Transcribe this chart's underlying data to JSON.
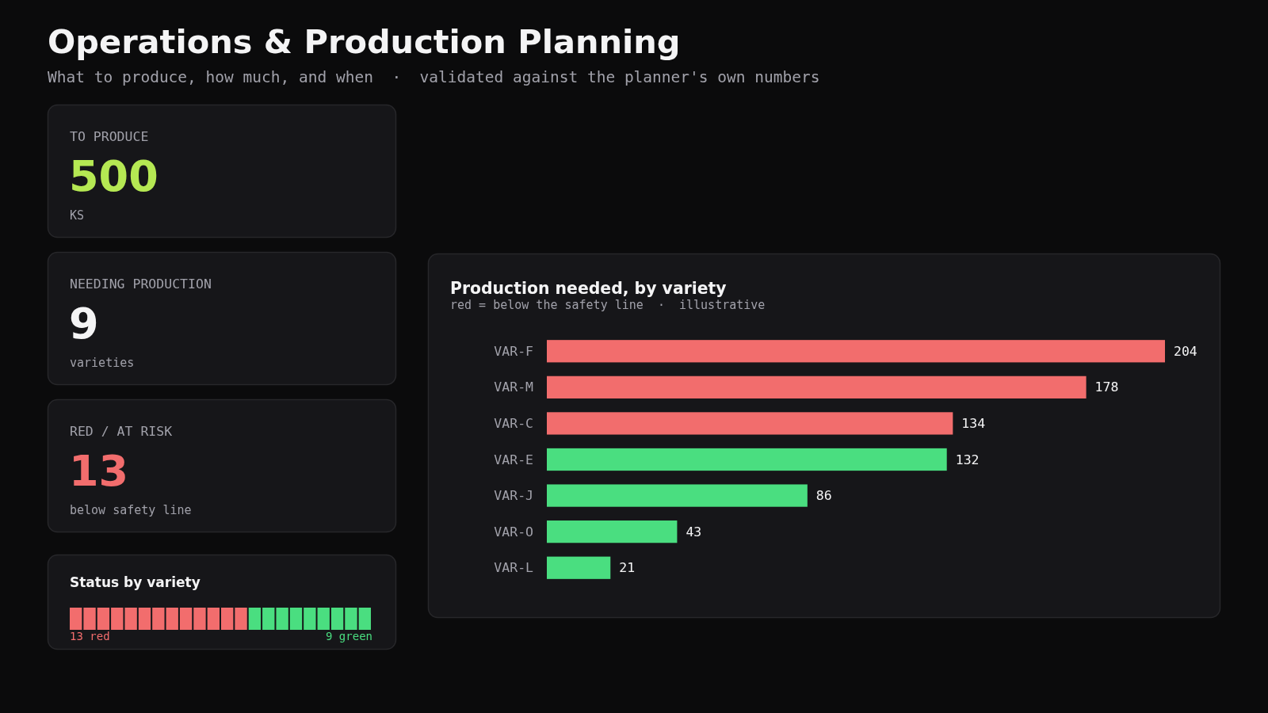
{
  "chart_data": [
    {
      "type": "other",
      "title": "Operations & Production Planning",
      "subtitle": "What to produce, how much, and when  ·  validated against the planner's own numbers"
    },
    {
      "type": "other",
      "title": "TO PRODUCE",
      "values": [
        500
      ],
      "data_labels": true,
      "annotations": [
        "KS"
      ]
    },
    {
      "type": "other",
      "title": "NEEDING PRODUCTION",
      "values": [
        9
      ],
      "data_labels": true,
      "annotations": [
        "varieties"
      ]
    },
    {
      "type": "other",
      "title": "RED / AT RISK",
      "values": [
        13
      ],
      "data_labels": true,
      "annotations": [
        "below safety line"
      ]
    },
    {
      "type": "other",
      "title": "Status by variety",
      "values": [
        13,
        9
      ],
      "colors": [
        "#f26d6d",
        "#4ade80"
      ],
      "value_labels": [
        "13 red",
        "9 green"
      ]
    },
    {
      "type": "bar",
      "orientation": "horizontal",
      "title": "Production needed, by variety",
      "subtitle": "red = below the safety line  ·  illustrative",
      "categories": [
        "VAR-F",
        "VAR-M",
        "VAR-C",
        "VAR-E",
        "VAR-J",
        "VAR-O",
        "VAR-L"
      ],
      "values": [
        204,
        178,
        134,
        132,
        86,
        43,
        21
      ],
      "colors": [
        "#f26d6d",
        "#f26d6d",
        "#f26d6d",
        "#4ade80",
        "#4ade80",
        "#4ade80",
        "#4ade80"
      ],
      "data_labels": true,
      "tick_labels": "y"
    }
  ]
}
